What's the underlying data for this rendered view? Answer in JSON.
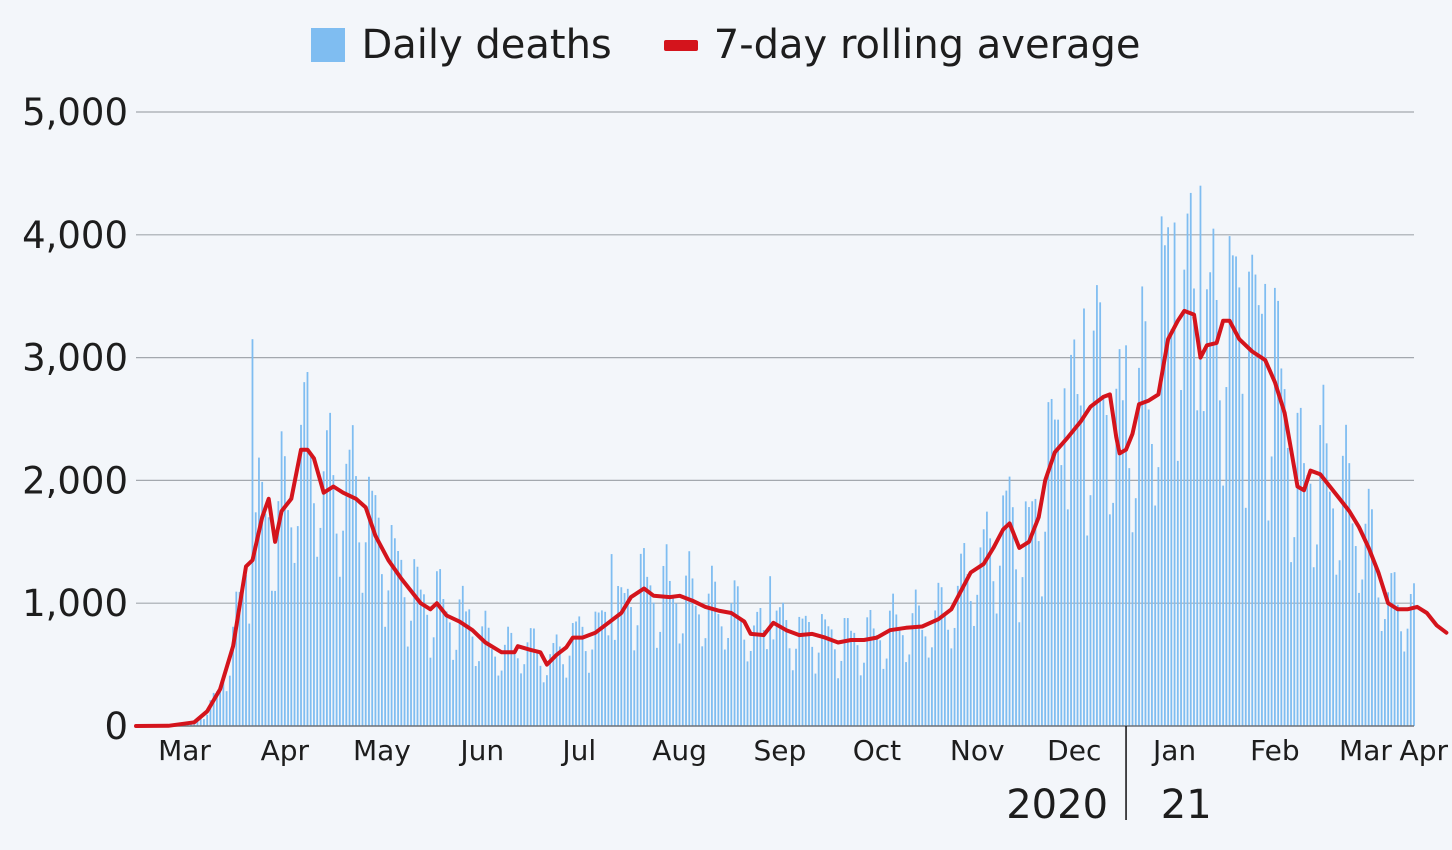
{
  "legend": {
    "bars_label": "Daily deaths",
    "line_label": "7-day rolling average",
    "bars_color": "#7fbdf1",
    "line_color": "#d4141c"
  },
  "chart_data": {
    "type": "bar",
    "title": "",
    "xlabel": "",
    "ylabel": "",
    "ylim": [
      0,
      5000
    ],
    "y_ticks": [
      0,
      1000,
      2000,
      3000,
      4000,
      5000
    ],
    "y_tick_labels": [
      "0",
      "1,000",
      "2,000",
      "3,000",
      "4,000",
      "5,000"
    ],
    "x_tick_labels": [
      "Mar",
      "Apr",
      "May",
      "Jun",
      "Jul",
      "Aug",
      "Sep",
      "Oct",
      "Nov",
      "Dec",
      "Jan",
      "Feb",
      "Mar",
      "Apr"
    ],
    "year_labels": [
      "2020",
      " 21"
    ],
    "day_range": {
      "start": "2020-03-01",
      "end": "2021-03-31",
      "days": 396
    },
    "x_tick_days": [
      15,
      46,
      76,
      107,
      137,
      168,
      199,
      229,
      260,
      290,
      321,
      352,
      380,
      410
    ],
    "year_divider_day": 306,
    "series": [
      {
        "name": "7-day rolling average",
        "type": "line",
        "keypoints_day_value": [
          [
            0,
            0
          ],
          [
            10,
            2
          ],
          [
            18,
            30
          ],
          [
            22,
            120
          ],
          [
            26,
            300
          ],
          [
            30,
            650
          ],
          [
            34,
            1300
          ],
          [
            36,
            1350
          ],
          [
            39,
            1700
          ],
          [
            41,
            1850
          ],
          [
            43,
            1500
          ],
          [
            45,
            1750
          ],
          [
            48,
            1850
          ],
          [
            51,
            2250
          ],
          [
            53,
            2250
          ],
          [
            55,
            2180
          ],
          [
            58,
            1900
          ],
          [
            61,
            1950
          ],
          [
            64,
            1900
          ],
          [
            68,
            1850
          ],
          [
            71,
            1780
          ],
          [
            74,
            1550
          ],
          [
            78,
            1350
          ],
          [
            82,
            1200
          ],
          [
            85,
            1100
          ],
          [
            88,
            1000
          ],
          [
            91,
            950
          ],
          [
            93,
            1000
          ],
          [
            96,
            900
          ],
          [
            100,
            850
          ],
          [
            104,
            780
          ],
          [
            108,
            680
          ],
          [
            113,
            600
          ],
          [
            117,
            600
          ],
          [
            118,
            650
          ],
          [
            122,
            620
          ],
          [
            125,
            600
          ],
          [
            127,
            500
          ],
          [
            130,
            580
          ],
          [
            133,
            640
          ],
          [
            135,
            720
          ],
          [
            138,
            720
          ],
          [
            142,
            760
          ],
          [
            146,
            840
          ],
          [
            150,
            920
          ],
          [
            153,
            1050
          ],
          [
            157,
            1120
          ],
          [
            160,
            1060
          ],
          [
            165,
            1050
          ],
          [
            168,
            1060
          ],
          [
            172,
            1020
          ],
          [
            176,
            970
          ],
          [
            180,
            940
          ],
          [
            184,
            920
          ],
          [
            188,
            850
          ],
          [
            190,
            750
          ],
          [
            194,
            740
          ],
          [
            197,
            840
          ],
          [
            201,
            780
          ],
          [
            205,
            740
          ],
          [
            209,
            750
          ],
          [
            213,
            720
          ],
          [
            217,
            680
          ],
          [
            221,
            700
          ],
          [
            225,
            700
          ],
          [
            229,
            720
          ],
          [
            233,
            780
          ],
          [
            238,
            800
          ],
          [
            243,
            810
          ],
          [
            248,
            870
          ],
          [
            252,
            950
          ],
          [
            255,
            1100
          ],
          [
            258,
            1250
          ],
          [
            262,
            1320
          ],
          [
            265,
            1450
          ],
          [
            268,
            1600
          ],
          [
            270,
            1650
          ],
          [
            273,
            1450
          ],
          [
            276,
            1500
          ],
          [
            279,
            1700
          ],
          [
            281,
            2000
          ],
          [
            284,
            2230
          ],
          [
            288,
            2350
          ],
          [
            292,
            2480
          ],
          [
            295,
            2600
          ],
          [
            299,
            2680
          ],
          [
            301,
            2700
          ],
          [
            303,
            2350
          ],
          [
            304,
            2220
          ],
          [
            306,
            2250
          ],
          [
            308,
            2380
          ],
          [
            310,
            2620
          ],
          [
            313,
            2650
          ],
          [
            316,
            2700
          ],
          [
            319,
            3150
          ],
          [
            322,
            3300
          ],
          [
            324,
            3380
          ],
          [
            327,
            3350
          ],
          [
            329,
            3000
          ],
          [
            331,
            3100
          ],
          [
            334,
            3120
          ],
          [
            336,
            3300
          ],
          [
            338,
            3300
          ],
          [
            341,
            3150
          ],
          [
            345,
            3050
          ],
          [
            349,
            2980
          ],
          [
            352,
            2800
          ],
          [
            355,
            2550
          ],
          [
            357,
            2250
          ],
          [
            359,
            1950
          ],
          [
            361,
            1920
          ],
          [
            363,
            2080
          ],
          [
            366,
            2050
          ],
          [
            369,
            1950
          ],
          [
            372,
            1850
          ],
          [
            375,
            1750
          ],
          [
            378,
            1620
          ],
          [
            381,
            1450
          ],
          [
            384,
            1250
          ],
          [
            387,
            1000
          ],
          [
            390,
            950
          ],
          [
            393,
            950
          ],
          [
            396,
            970
          ],
          [
            399,
            920
          ],
          [
            402,
            820
          ],
          [
            405,
            760
          ]
        ]
      },
      {
        "name": "Daily deaths",
        "type": "bar",
        "spikes_day_value": [
          [
            36,
            3150
          ],
          [
            52,
            2800
          ],
          [
            60,
            2550
          ],
          [
            67,
            2450
          ],
          [
            103,
            950
          ],
          [
            147,
            1400
          ],
          [
            164,
            1480
          ],
          [
            196,
            1220
          ],
          [
            287,
            2750
          ],
          [
            293,
            3400
          ],
          [
            298,
            3450
          ],
          [
            306,
            3100
          ],
          [
            317,
            4150
          ],
          [
            321,
            4100
          ],
          [
            329,
            4400
          ],
          [
            333,
            4050
          ],
          [
            344,
            3700
          ],
          [
            349,
            3600
          ],
          [
            359,
            2550
          ],
          [
            373,
            2200
          ]
        ]
      }
    ]
  }
}
